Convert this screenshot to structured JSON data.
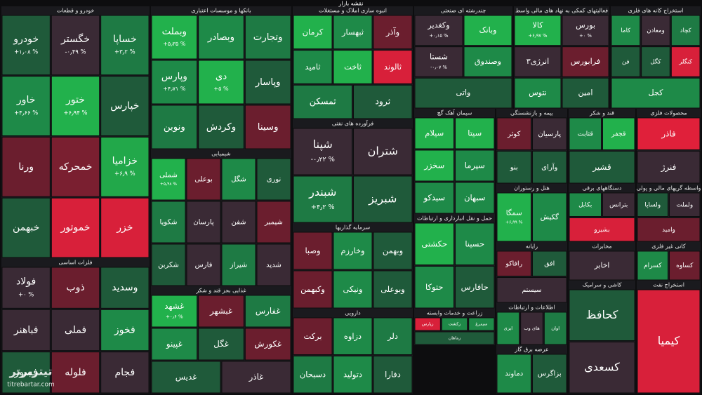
{
  "title": "نقشه بازار",
  "watermark": {
    "brand": "تیتربرتر",
    "site": "titrebartar.com"
  },
  "sectors": [
    {
      "name": "خودرو و قطعات",
      "tiles": [
        {
          "name": "خودرو",
          "change": "+۱٫۰۸ %",
          "color": "#1f5a3a"
        },
        {
          "name": "خگستر",
          "change": "-۰٫۴۹ %",
          "color": "#3a2a35"
        },
        {
          "name": "خساپا",
          "change": "+۳٫۲ %",
          "color": "#1e7a44"
        },
        {
          "name": "خاور",
          "change": "+۴٫۶۶ %",
          "color": "#1e8a48"
        },
        {
          "name": "ختور",
          "change": "+۶٫۹۴ %",
          "color": "#22b14c"
        },
        {
          "name": "خپارس",
          "color": "#1f5a3a"
        },
        {
          "name": "ورنا",
          "color": "#6b1e2e"
        },
        {
          "name": "خمحرکه",
          "color": "#7a1f30"
        },
        {
          "name": "خزامیا",
          "change": "+۶٫۹ %",
          "color": "#22a84a"
        },
        {
          "name": "خبهمن",
          "color": "#1f5a3a"
        },
        {
          "name": "خموتور",
          "color": "#d8203a"
        },
        {
          "name": "خزر",
          "color": "#d8203a"
        }
      ]
    },
    {
      "name": "بانکها و موسسات اعتباری",
      "tiles": [
        {
          "name": "وبملت",
          "change": "+۵٫۳۵ %",
          "color": "#22b14c"
        },
        {
          "name": "وبصادر",
          "color": "#1e8a48"
        },
        {
          "name": "وتجارت",
          "color": "#1e7a44"
        },
        {
          "name": "وپارس",
          "change": "+۴٫۷۱ %",
          "color": "#1e8a48"
        },
        {
          "name": "دی",
          "change": "+۵ %",
          "color": "#22b14c"
        },
        {
          "name": "وپاسار",
          "color": "#1f5a3a"
        },
        {
          "name": "ونوین",
          "color": "#1e7a44"
        },
        {
          "name": "وکردش",
          "color": "#1f5a3a"
        },
        {
          "name": "وسینا",
          "color": "#6b1e2e"
        }
      ]
    },
    {
      "name": "انبوه سازی املاک و مستغلات",
      "tiles": [
        {
          "name": "کرمان",
          "color": "#22b14c"
        },
        {
          "name": "ثبهسار",
          "color": "#1e8a48"
        },
        {
          "name": "وآذر",
          "color": "#6b1e2e"
        },
        {
          "name": "ثامید",
          "color": "#1e8a48"
        },
        {
          "name": "ثاخت",
          "color": "#22b14c"
        },
        {
          "name": "ثالوند",
          "color": "#d8203a"
        },
        {
          "name": "ثمسکن",
          "color": "#1e7a44"
        },
        {
          "name": "ثرود",
          "color": "#1f5a3a"
        }
      ]
    },
    {
      "name": "چندرشته ای صنعتی",
      "tiles": [
        {
          "name": "وکغدیر",
          "change": "+۰٫۱۵ %",
          "color": "#3a2a35"
        },
        {
          "name": "وبانک",
          "color": "#22b14c"
        },
        {
          "name": "شستا",
          "change": "-۰٫۰۷ %",
          "color": "#3a2a35"
        },
        {
          "name": "وصندوق",
          "color": "#1e8a48"
        },
        {
          "name": "واتی",
          "color": "#1f5a3a"
        }
      ]
    },
    {
      "name": "فعالیتهای کمکی به نهاد های مالی واسط",
      "tiles": [
        {
          "name": "کالا",
          "change": "+۶٫۹۷ %",
          "color": "#22b14c"
        },
        {
          "name": "بورس",
          "change": "+۰ %",
          "color": "#3a2a35"
        },
        {
          "name": "انرژی۳",
          "color": "#3a2a35"
        },
        {
          "name": "فرابورس",
          "color": "#6b1e2e"
        },
        {
          "name": "نتوس",
          "color": "#1e8a48"
        },
        {
          "name": "امین",
          "color": "#1f5a3a"
        }
      ]
    },
    {
      "name": "استخراج کانه های فلزی",
      "tiles": [
        {
          "name": "کاما",
          "color": "#1e8a48"
        },
        {
          "name": "ومعادن",
          "color": "#3a2a35"
        },
        {
          "name": "کچاد",
          "color": "#1e7a44"
        },
        {
          "name": "فن",
          "color": "#1f5a3a"
        },
        {
          "name": "کگل",
          "color": "#1f5a3a"
        },
        {
          "name": "کنگلر",
          "color": "#d8203a"
        },
        {
          "name": "کجل",
          "color": "#1e8a48"
        }
      ]
    },
    {
      "name": "فرآورده های نفتی",
      "tiles": [
        {
          "name": "شپنا",
          "change": "-۰٫۲۲ %",
          "color": "#3a2a35"
        },
        {
          "name": "شتران",
          "color": "#3a2a35"
        },
        {
          "name": "شبندر",
          "change": "+۴٫۲ %",
          "color": "#1e7a44"
        },
        {
          "name": "شبریز",
          "color": "#1f5a3a"
        }
      ]
    },
    {
      "name": "شیمیایی",
      "tiles": [
        {
          "name": "شملی",
          "change": "+۵٫۴۸ %",
          "color": "#22b14c"
        },
        {
          "name": "بوعلی",
          "color": "#6b1e2e"
        },
        {
          "name": "شگل",
          "color": "#1e8a48"
        },
        {
          "name": "نوری",
          "color": "#1f5a3a"
        },
        {
          "name": "شکویا",
          "color": "#1e7a44"
        },
        {
          "name": "پارسان",
          "color": "#3a2a35"
        },
        {
          "name": "شفن",
          "color": "#3a2a35"
        },
        {
          "name": "شیمبر",
          "color": "#6b1e2e"
        },
        {
          "name": "شکربن",
          "color": "#1f5a3a"
        },
        {
          "name": "فارس",
          "color": "#3a2a35"
        },
        {
          "name": "شیراز",
          "color": "#1e7a44"
        },
        {
          "name": "شدید",
          "color": "#3a2a35"
        }
      ]
    },
    {
      "name": "سیمان آهک گچ",
      "tiles": [
        {
          "name": "سیلام",
          "color": "#22b14c"
        },
        {
          "name": "سیتا",
          "color": "#22b14c"
        },
        {
          "name": "سخزر",
          "color": "#22b14c"
        },
        {
          "name": "سپرما",
          "color": "#1e8a48"
        },
        {
          "name": "سیدکو",
          "color": "#1e8a48"
        },
        {
          "name": "سبهان",
          "color": "#1e8a48"
        }
      ]
    },
    {
      "name": "بیمه و بازنشستگی",
      "tiles": [
        {
          "name": "کوثر",
          "color": "#6b1e2e"
        },
        {
          "name": "پارسیان",
          "color": "#3a2a35"
        },
        {
          "name": "بنو",
          "color": "#1f5a3a"
        },
        {
          "name": "وآرای",
          "color": "#1f5a3a"
        }
      ]
    },
    {
      "name": "قند و شکر",
      "tiles": [
        {
          "name": "قثابت",
          "color": "#1e8a48"
        },
        {
          "name": "قجفر",
          "color": "#22b14c"
        },
        {
          "name": "قشیر",
          "color": "#1f5a3a"
        }
      ]
    },
    {
      "name": "محصولات فلزی",
      "tiles": [
        {
          "name": "فاذر",
          "color": "#e0203a"
        },
        {
          "name": "فنرژ",
          "color": "#3a2a35"
        }
      ]
    },
    {
      "name": "هتل و رستوران",
      "tiles": [
        {
          "name": "سمگا",
          "change": "+۶٫۹۹ %",
          "color": "#22b14c"
        },
        {
          "name": "گکیش",
          "color": "#1e8a48"
        }
      ]
    },
    {
      "name": "دستگاههای برقی",
      "tiles": [
        {
          "name": "بکابل",
          "color": "#1e8a48"
        },
        {
          "name": "بترانس",
          "color": "#3a2a35"
        },
        {
          "name": "بشیرو",
          "color": "#d8203a"
        }
      ]
    },
    {
      "name": "واسطه گریهای مالی و پولی",
      "tiles": [
        {
          "name": "ولساپا",
          "color": "#1f5a3a"
        },
        {
          "name": "ولملت",
          "color": "#3a2a35"
        },
        {
          "name": "وامید",
          "color": "#6b1e2e"
        }
      ]
    },
    {
      "name": "فلزات اساسی",
      "tiles": [
        {
          "name": "فولاد",
          "change": "+۰ %",
          "color": "#3a2a35"
        },
        {
          "name": "ذوب",
          "color": "#6b1e2e"
        },
        {
          "name": "وسدید",
          "color": "#1f5a3a"
        },
        {
          "name": "فباهنر",
          "color": "#3a2a35"
        },
        {
          "name": "فملی",
          "color": "#3a2a35"
        },
        {
          "name": "فخوز",
          "color": "#1e8a48"
        },
        {
          "name": "فسوژ",
          "color": "#1f5a3a"
        },
        {
          "name": "فلوله",
          "color": "#6b1e2e"
        },
        {
          "name": "فجام",
          "color": "#3a2a35"
        }
      ]
    },
    {
      "name": "غذایی بجز قند و شکر",
      "tiles": [
        {
          "name": "غشهد",
          "change": "+۰٫۶ %",
          "color": "#22b14c"
        },
        {
          "name": "غبشهر",
          "color": "#6b1e2e"
        },
        {
          "name": "غفارس",
          "color": "#1e7a44"
        },
        {
          "name": "غپینو",
          "color": "#1e8a48"
        },
        {
          "name": "غگل",
          "color": "#1f5a3a"
        },
        {
          "name": "غکورش",
          "color": "#6b1e2e"
        },
        {
          "name": "غدیس",
          "color": "#1f5a3a"
        },
        {
          "name": "غاذر",
          "color": "#3a2a35"
        }
      ]
    },
    {
      "name": "سرمایه گذاریها",
      "tiles": [
        {
          "name": "وصبا",
          "color": "#6b1e2e"
        },
        {
          "name": "وخارزم",
          "color": "#1e8a48"
        },
        {
          "name": "وبهمن",
          "color": "#1f5a3a"
        },
        {
          "name": "وکبهمن",
          "color": "#6b1e2e"
        },
        {
          "name": "ونیکی",
          "color": "#1e8a48"
        },
        {
          "name": "وبوعلی",
          "color": "#1f5a3a"
        }
      ]
    },
    {
      "name": "حمل و نقل انبارداری و ارتباطات",
      "tiles": [
        {
          "name": "حکشتی",
          "color": "#22b14c"
        },
        {
          "name": "حسینا",
          "color": "#1e8a48"
        },
        {
          "name": "حتوکا",
          "color": "#1e8a48"
        },
        {
          "name": "حافارس",
          "color": "#1f5a3a"
        }
      ]
    },
    {
      "name": "رایانه",
      "tiles": [
        {
          "name": "رافاکو",
          "color": "#6b1e2e"
        },
        {
          "name": "افق",
          "color": "#1f5a3a"
        },
        {
          "name": "سیستم",
          "color": "#3a2a35"
        }
      ]
    },
    {
      "name": "مخابرات",
      "tiles": [
        {
          "name": "اخابر",
          "color": "#3a2a35"
        }
      ]
    },
    {
      "name": "کانی غیر فلزی",
      "tiles": [
        {
          "name": "کسرام",
          "color": "#1e8a48"
        },
        {
          "name": "کساوه",
          "color": "#6b1e2e"
        }
      ]
    },
    {
      "name": "دارویی",
      "tiles": [
        {
          "name": "برکت",
          "color": "#6b1e2e"
        },
        {
          "name": "دزاوه",
          "color": "#1e8a48"
        },
        {
          "name": "دلر",
          "color": "#1e7a44"
        },
        {
          "name": "دسبحان",
          "color": "#1e7a44"
        },
        {
          "name": "دتولید",
          "color": "#1e8a48"
        },
        {
          "name": "دفارا",
          "color": "#1f5a3a"
        }
      ]
    },
    {
      "name": "زراعت و خدمات وابسته",
      "tiles": [
        {
          "name": "زپارس",
          "color": "#d8203a"
        },
        {
          "name": "زکشت",
          "color": "#1e8a48"
        },
        {
          "name": "سیمرغ",
          "color": "#1e8a48"
        },
        {
          "name": "زماهان",
          "color": "#1f5a3a"
        }
      ]
    },
    {
      "name": "اطلاعات و ارتباطات",
      "tiles": [
        {
          "name": "ایزی",
          "color": "#1e8a48"
        },
        {
          "name": "های وب",
          "color": "#3a2a35"
        },
        {
          "name": "اوان",
          "color": "#1e7a44"
        }
      ]
    },
    {
      "name": "عرضه برق گاز",
      "tiles": [
        {
          "name": "دماوند",
          "color": "#1e8a48"
        },
        {
          "name": "بزاگرس",
          "color": "#1f5a3a"
        }
      ]
    },
    {
      "name": "کاشی و سرامیک",
      "tiles": [
        {
          "name": "کحافظ",
          "color": "#1f5a3a"
        },
        {
          "name": "کسعدی",
          "color": "#3a2a35"
        }
      ]
    },
    {
      "name": "استخراج نفت",
      "tiles": [
        {
          "name": "کیمیا",
          "color": "#d8203a"
        }
      ]
    }
  ]
}
